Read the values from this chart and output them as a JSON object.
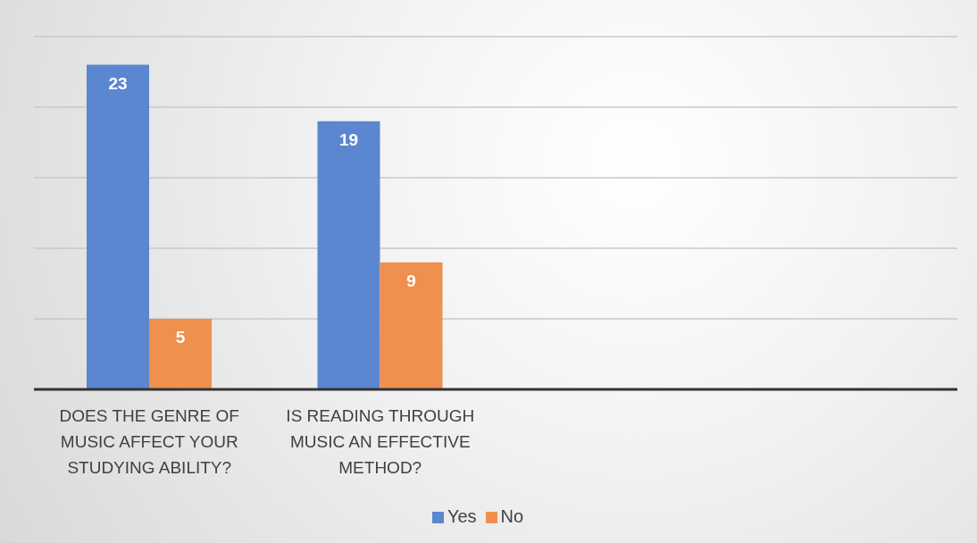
{
  "chart_data": {
    "type": "bar",
    "categories": [
      "DOES THE GENRE OF MUSIC AFFECT YOUR STUDYING ABILITY?",
      "IS READING THROUGH MUSIC AN EFFECTIVE METHOD?",
      null,
      null
    ],
    "series": [
      {
        "name": "Yes",
        "color": "#5b86d0",
        "values": [
          23,
          19,
          null,
          null
        ]
      },
      {
        "name": "No",
        "color": "#f0904f",
        "values": [
          5,
          9,
          null,
          null
        ]
      }
    ],
    "ylim": [
      0,
      25
    ],
    "grid": "y",
    "legend": "bottom",
    "data_labels": true,
    "tick_labels": "x"
  }
}
